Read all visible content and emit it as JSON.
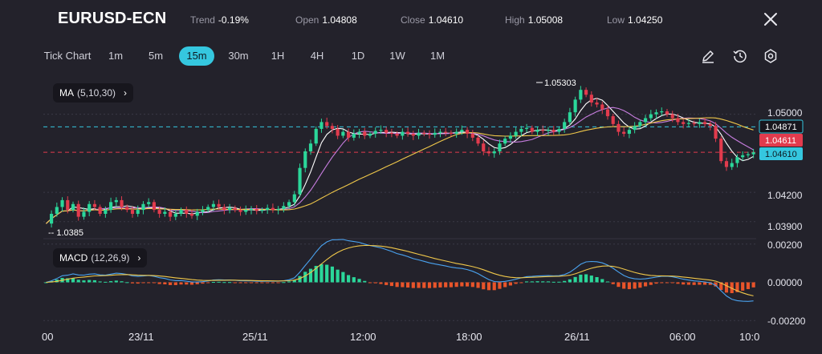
{
  "header": {
    "symbol": "EURUSD-ECN",
    "trend_label": "Trend",
    "trend_value": "-0.19%",
    "open_label": "Open",
    "open_value": "1.04808",
    "close_label": "Close",
    "close_value": "1.04610",
    "high_label": "High",
    "high_value": "1.05008",
    "low_label": "Low",
    "low_value": "1.04250"
  },
  "timeframes": [
    {
      "label": "Tick Chart",
      "active": false
    },
    {
      "label": "1m",
      "active": false
    },
    {
      "label": "5m",
      "active": false
    },
    {
      "label": "15m",
      "active": true
    },
    {
      "label": "30m",
      "active": false
    },
    {
      "label": "1H",
      "active": false
    },
    {
      "label": "4H",
      "active": false
    },
    {
      "label": "1D",
      "active": false
    },
    {
      "label": "1W",
      "active": false
    },
    {
      "label": "1M",
      "active": false
    }
  ],
  "tools": [
    "pencil-icon",
    "clock-icon",
    "settings-icon"
  ],
  "indicators": {
    "ma": {
      "name": "MA",
      "params": "(5,10,30)"
    },
    "macd": {
      "name": "MACD",
      "params": "(12,26,9)"
    }
  },
  "chart_data": {
    "type": "candlestick",
    "price_axis": {
      "ticks": [
        "1.05000",
        "1.04200",
        "1.03900"
      ],
      "range": [
        1.0375,
        1.0535
      ]
    },
    "price_tags": [
      {
        "label": "1.04871",
        "style": "dashed-cyan"
      },
      {
        "label": "1.04611",
        "style": "dashed-red"
      },
      {
        "label": "1.04610",
        "style": "cyan"
      }
    ],
    "annotations": {
      "high_marker": "1.05303",
      "low_marker": "-- 1.0385"
    },
    "macd_axis": {
      "ticks": [
        "0.00200",
        "0.00000",
        "-0.00200"
      ],
      "range": [
        -0.0022,
        0.0022
      ]
    },
    "x_labels": [
      "00",
      "23/11",
      "25/11",
      "12:00",
      "18:00",
      "26/11",
      "06:00",
      "10:0"
    ],
    "closes": [
      1.0388,
      1.0398,
      1.0405,
      1.0412,
      1.0402,
      1.0408,
      1.0395,
      1.04,
      1.0408,
      1.0405,
      1.0398,
      1.0402,
      1.041,
      1.0412,
      1.0405,
      1.0402,
      1.0398,
      1.0402,
      1.0408,
      1.041,
      1.0402,
      1.0398,
      1.04,
      1.0395,
      1.0398,
      1.0402,
      1.0398,
      1.0396,
      1.04,
      1.0402,
      1.0405,
      1.0408,
      1.0405,
      1.0402,
      1.0404,
      1.0402,
      1.04,
      1.0402,
      1.0403,
      1.0401,
      1.0402,
      1.0404,
      1.0402,
      1.0403,
      1.0406,
      1.041,
      1.0418,
      1.0445,
      1.0462,
      1.047,
      1.0485,
      1.0492,
      1.0488,
      1.0485,
      1.0478,
      1.0482,
      1.0476,
      1.048,
      1.0482,
      1.0478,
      1.048,
      1.0483,
      1.0484,
      1.0481,
      1.048,
      1.0478,
      1.0482,
      1.048,
      1.0478,
      1.0481,
      1.048,
      1.0479,
      1.0481,
      1.0482,
      1.0481,
      1.048,
      1.0482,
      1.0484,
      1.048,
      1.0476,
      1.047,
      1.0462,
      1.046,
      1.0462,
      1.047,
      1.0475,
      1.0478,
      1.0482,
      1.0485,
      1.0486,
      1.0482,
      1.0484,
      1.0483,
      1.0484,
      1.0482,
      1.0485,
      1.0492,
      1.0502,
      1.0515,
      1.0525,
      1.052,
      1.0512,
      1.051,
      1.0505,
      1.0498,
      1.049,
      1.0482,
      1.048,
      1.0484,
      1.0488,
      1.0492,
      1.0496,
      1.05,
      1.0502,
      1.0503,
      1.05,
      1.0496,
      1.0492,
      1.049,
      1.0491,
      1.049,
      1.0492,
      1.049,
      1.0488,
      1.0475,
      1.0452,
      1.0446,
      1.045,
      1.0456,
      1.0458,
      1.0459,
      1.0461
    ]
  }
}
